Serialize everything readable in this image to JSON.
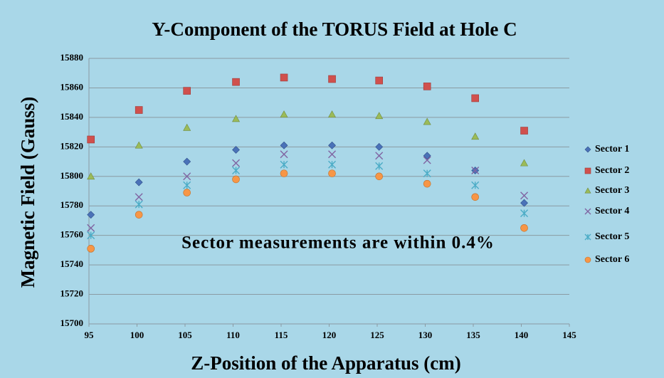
{
  "chart_data": {
    "type": "scatter",
    "title": "Y-Component of the TORUS Field at Hole C",
    "x_label": "Z-Position of the Apparatus (cm)",
    "y_label": "Magnetic Field (Gauss)",
    "annotation": "Sector measurements are within 0.4%",
    "x": [
      95.2,
      100.2,
      105.2,
      110.3,
      115.3,
      120.3,
      125.2,
      130.2,
      135.2,
      140.3
    ],
    "series": [
      {
        "name": "Sector 1",
        "color": "#4a72b8",
        "marker": "diamond",
        "values": [
          15774,
          15796,
          15810,
          15818,
          15821,
          15821,
          15820,
          15814,
          15804,
          15782
        ]
      },
      {
        "name": "Sector 2",
        "color": "#d0504d",
        "marker": "square",
        "values": [
          15825,
          15845,
          15858,
          15864,
          15867,
          15866,
          15865,
          15861,
          15853,
          15831
        ]
      },
      {
        "name": "Sector 3",
        "color": "#9bbb59",
        "marker": "triangle",
        "values": [
          15800,
          15821,
          15833,
          15839,
          15842,
          15842,
          15841,
          15837,
          15827,
          15809
        ]
      },
      {
        "name": "Sector 4",
        "color": "#8064a2",
        "marker": "x",
        "values": [
          15765,
          15786,
          15800,
          15809,
          15815,
          15815,
          15814,
          15811,
          15804,
          15787
        ]
      },
      {
        "name": "Sector 5",
        "color": "#4bacc6",
        "marker": "star",
        "values": [
          15760,
          15781,
          15794,
          15804,
          15808,
          15808,
          15807,
          15802,
          15794,
          15775
        ]
      },
      {
        "name": "Sector 6",
        "color": "#f79646",
        "marker": "circle",
        "values": [
          15751,
          15774,
          15789,
          15798,
          15802,
          15802,
          15800,
          15795,
          15786,
          15765
        ]
      }
    ],
    "xlim": [
      95,
      145
    ],
    "xticks": [
      95,
      100,
      105,
      110,
      115,
      120,
      125,
      130,
      135,
      140,
      145
    ],
    "ylim": [
      15700,
      15880
    ],
    "yticks": [
      15700,
      15720,
      15740,
      15760,
      15780,
      15800,
      15820,
      15840,
      15860,
      15880
    ],
    "grid": true,
    "legend": "right"
  }
}
